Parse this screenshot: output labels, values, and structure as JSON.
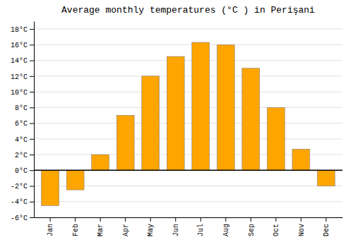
{
  "chart_data": {
    "type": "bar",
    "title": "Average monthly temperatures (°C ) in Perişani",
    "categories": [
      "Jan",
      "Feb",
      "Mar",
      "Apr",
      "May",
      "Jun",
      "Jul",
      "Aug",
      "Sep",
      "Oct",
      "Nov",
      "Dec"
    ],
    "values": [
      -4.5,
      -2.5,
      2.0,
      7.0,
      12.0,
      14.5,
      16.3,
      16.0,
      13.0,
      8.0,
      2.7,
      -2.0
    ],
    "color": "#FFA500",
    "ylim": [
      -6,
      19
    ],
    "yticks": [
      {
        "value": -6,
        "label": "-6°C"
      },
      {
        "value": -4,
        "label": "-4°C"
      },
      {
        "value": -2,
        "label": "-2°C"
      },
      {
        "value": 0,
        "label": "0°C"
      },
      {
        "value": 2,
        "label": "2°C"
      },
      {
        "value": 4,
        "label": "4°C"
      },
      {
        "value": 6,
        "label": "6°C"
      },
      {
        "value": 8,
        "label": "8°C"
      },
      {
        "value": 10,
        "label": "10°C"
      },
      {
        "value": 12,
        "label": "12°C"
      },
      {
        "value": 14,
        "label": "14°C"
      },
      {
        "value": 16,
        "label": "16°C"
      },
      {
        "value": 18,
        "label": "18°C"
      }
    ],
    "grid": true
  }
}
